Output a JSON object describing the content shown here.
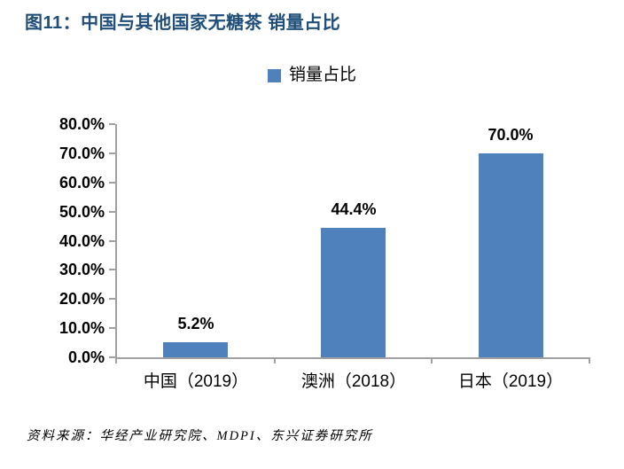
{
  "figure": {
    "title": "图11：中国与其他国家无糖茶 销量占比",
    "source": "资料来源：华经产业研究院、MDPI、东兴证券研究所"
  },
  "legend": {
    "label": "销量占比"
  },
  "colors": {
    "title": "#1F4E79",
    "bar": "#4F81BD",
    "axis": "#A0A0A0",
    "text": "#000000"
  },
  "chart_data": {
    "type": "bar",
    "title": "图11：中国与其他国家无糖茶 销量占比",
    "categories": [
      "中国（2019）",
      "澳洲（2018）",
      "日本（2019）"
    ],
    "series": [
      {
        "name": "销量占比",
        "values": [
          5.2,
          44.4,
          70.0
        ]
      }
    ],
    "data_labels": [
      "5.2%",
      "44.4%",
      "70.0%"
    ],
    "xlabel": "",
    "ylabel": "",
    "ylim": [
      0,
      80
    ],
    "ytick_step": 10,
    "yticks": [
      "0.0%",
      "10.0%",
      "20.0%",
      "30.0%",
      "40.0%",
      "50.0%",
      "60.0%",
      "70.0%",
      "80.0%"
    ],
    "grid": false,
    "legend_position": "top-center",
    "bar_color": "#4F81BD"
  }
}
